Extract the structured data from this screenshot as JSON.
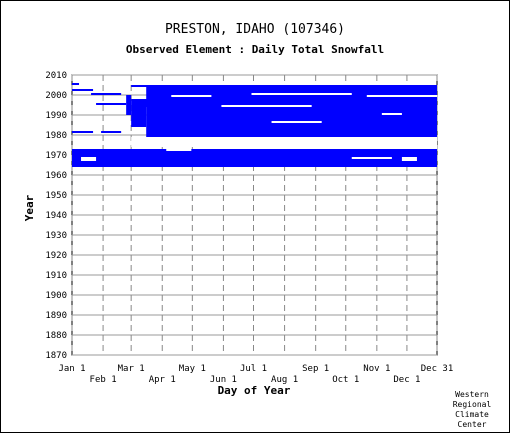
{
  "chart_data": {
    "type": "heatmap",
    "title": "PRESTON, IDAHO   (107346)",
    "subtitle": "Observed Element : Daily Total Snowfall",
    "xlabel": "Day of Year",
    "ylabel": "Year",
    "xlim": [
      1,
      365
    ],
    "ylim": [
      1870,
      2010
    ],
    "x_ticks_upper": [
      {
        "label": "Jan 1",
        "day": 1
      },
      {
        "label": "Mar 1",
        "day": 60
      },
      {
        "label": "May 1",
        "day": 121
      },
      {
        "label": "Jul 1",
        "day": 182
      },
      {
        "label": "Sep 1",
        "day": 244
      },
      {
        "label": "Nov 1",
        "day": 305
      },
      {
        "label": "Dec 31",
        "day": 365
      }
    ],
    "x_ticks_lower": [
      {
        "label": "Feb 1",
        "day": 32
      },
      {
        "label": "Apr 1",
        "day": 91
      },
      {
        "label": "Jun 1",
        "day": 152
      },
      {
        "label": "Aug 1",
        "day": 213
      },
      {
        "label": "Oct 1",
        "day": 274
      },
      {
        "label": "Dec 1",
        "day": 335
      }
    ],
    "y_ticks": [
      1870,
      1880,
      1890,
      1900,
      1910,
      1920,
      1930,
      1940,
      1950,
      1960,
      1970,
      1980,
      1990,
      2000,
      2010
    ],
    "grid": true,
    "color": "#0000ff",
    "blocks": [
      {
        "x0": 1,
        "x1": 365,
        "y0": 1964,
        "y1": 1967
      },
      {
        "x0": 1,
        "x1": 10,
        "y0": 1967,
        "y1": 1970
      },
      {
        "x0": 25,
        "x1": 365,
        "y0": 1967,
        "y1": 1969
      },
      {
        "x0": 1,
        "x1": 365,
        "y0": 1969,
        "y1": 1972
      },
      {
        "x0": 1,
        "x1": 95,
        "y0": 1972,
        "y1": 1973
      },
      {
        "x0": 120,
        "x1": 365,
        "y0": 1972,
        "y1": 1973
      },
      {
        "x0": 75,
        "x1": 365,
        "y0": 1979,
        "y1": 2004
      },
      {
        "x0": 60,
        "x1": 75,
        "y0": 1984,
        "y1": 1994
      },
      {
        "x0": 60,
        "x1": 100,
        "y0": 1994,
        "y1": 1998
      },
      {
        "x0": 1,
        "x1": 8,
        "y0": 2005,
        "y1": 2006
      },
      {
        "x0": 12,
        "x1": 22,
        "y0": 2002,
        "y1": 2003
      },
      {
        "x0": 20,
        "x1": 50,
        "y0": 2000,
        "y1": 2001
      },
      {
        "x0": 25,
        "x1": 55,
        "y0": 1995,
        "y1": 1996
      },
      {
        "x0": 55,
        "x1": 60,
        "y0": 1990,
        "y1": 2000
      },
      {
        "x0": 1,
        "x1": 22,
        "y0": 1981,
        "y1": 1982
      },
      {
        "x0": 30,
        "x1": 50,
        "y0": 1981,
        "y1": 1982
      },
      {
        "x0": 60,
        "x1": 365,
        "y0": 2004,
        "y1": 2005
      },
      {
        "x0": 330,
        "x1": 365,
        "y0": 1996,
        "y1": 2001
      },
      {
        "x0": 330,
        "x1": 365,
        "y0": 1991,
        "y1": 1993
      },
      {
        "x0": 330,
        "x1": 365,
        "y0": 1985,
        "y1": 1986
      },
      {
        "x0": 1,
        "x1": 20,
        "y0": 2002,
        "y1": 2003
      }
    ],
    "gaps": [
      {
        "x0": 180,
        "x1": 280,
        "y0": 2000,
        "y1": 2001
      },
      {
        "x0": 200,
        "x1": 250,
        "y0": 1986,
        "y1": 1987
      },
      {
        "x0": 295,
        "x1": 365,
        "y0": 1999,
        "y1": 2000
      },
      {
        "x0": 100,
        "x1": 140,
        "y0": 1999,
        "y1": 2000
      },
      {
        "x0": 150,
        "x1": 240,
        "y0": 1994,
        "y1": 1995
      },
      {
        "x0": 310,
        "x1": 330,
        "y0": 1990,
        "y1": 1991
      },
      {
        "x0": 95,
        "x1": 110,
        "y0": 1975,
        "y1": 1979
      },
      {
        "x0": 60,
        "x1": 120,
        "y0": 1974,
        "y1": 1979
      },
      {
        "x0": 120,
        "x1": 150,
        "y0": 1974,
        "y1": 1979
      },
      {
        "x0": 150,
        "x1": 365,
        "y0": 1973,
        "y1": 1979
      },
      {
        "x0": 280,
        "x1": 320,
        "y0": 1968,
        "y1": 1969
      },
      {
        "x0": 330,
        "x1": 345,
        "y0": 1967,
        "y1": 1969
      }
    ]
  },
  "credit": "Western\nRegional\nClimate\nCenter"
}
